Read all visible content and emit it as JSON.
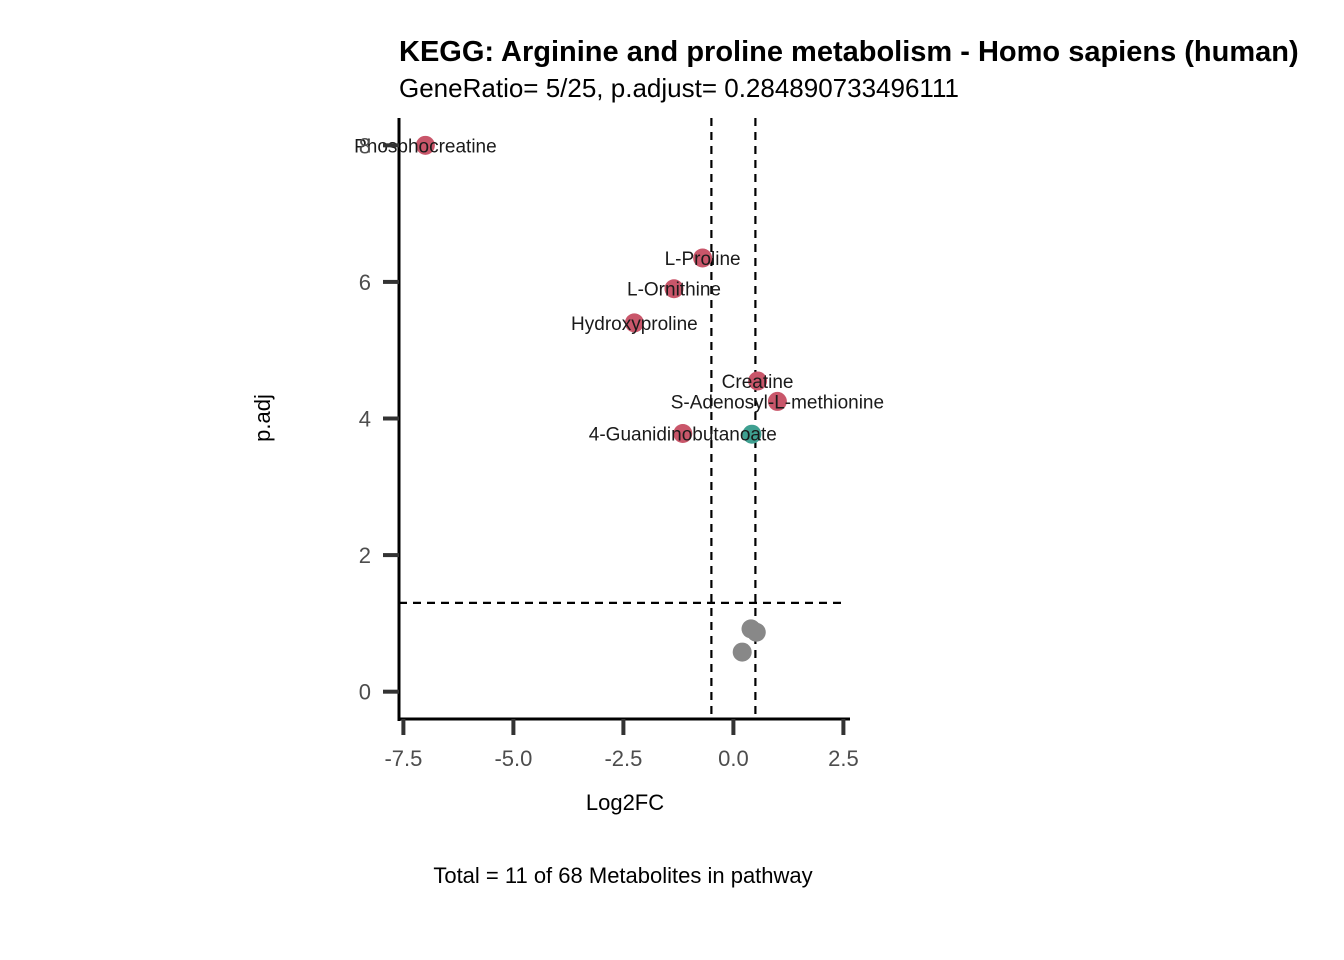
{
  "chart_data": {
    "type": "scatter",
    "title": "KEGG: Arginine and proline metabolism - Homo sapiens (human)",
    "subtitle": "GeneRatio= 5/25, p.adjust= 0.284890733496111",
    "xlabel": "Log2FC",
    "ylabel": "p.adj",
    "caption": "Total = 11 of 68 Metabolites in pathway",
    "xlim": [
      -7.6,
      2.65
    ],
    "ylim": [
      -0.4,
      8.4
    ],
    "x_ticks": [
      -7.5,
      -5.0,
      -2.5,
      0.0,
      2.5
    ],
    "x_tick_labels": [
      "-7.5",
      "-5.0",
      "-2.5",
      "0.0",
      "2.5"
    ],
    "y_ticks": [
      0,
      2,
      4,
      6,
      8
    ],
    "y_tick_labels": [
      "0",
      "2",
      "4",
      "6",
      "8"
    ],
    "vlines": [
      -0.5,
      0.5
    ],
    "hline": 1.3,
    "grid": false,
    "colors": {
      "down": "#c9566a",
      "up": "#3fa091",
      "ns": "#888888"
    },
    "points": [
      {
        "label": "Phosphocreatine",
        "x": -7.0,
        "y": 8.0,
        "group": "down"
      },
      {
        "label": "L-Proline",
        "x": -0.7,
        "y": 6.35,
        "group": "down"
      },
      {
        "label": "L-Ornithine",
        "x": -1.35,
        "y": 5.9,
        "group": "down"
      },
      {
        "label": "Hydroxyproline",
        "x": -2.25,
        "y": 5.4,
        "group": "down"
      },
      {
        "label": "Creatine",
        "x": 0.55,
        "y": 4.55,
        "group": "down"
      },
      {
        "label": "S-Adenosyl-L-methionine",
        "x": 1.0,
        "y": 4.25,
        "group": "down"
      },
      {
        "label": "4-Guanidinobutanoate",
        "x": -1.15,
        "y": 3.78,
        "group": "down"
      },
      {
        "label": "",
        "x": 0.42,
        "y": 3.77,
        "group": "up"
      },
      {
        "label": "",
        "x": 0.4,
        "y": 0.92,
        "group": "ns"
      },
      {
        "label": "",
        "x": 0.52,
        "y": 0.87,
        "group": "ns"
      },
      {
        "label": "",
        "x": 0.2,
        "y": 0.58,
        "group": "ns"
      }
    ]
  }
}
